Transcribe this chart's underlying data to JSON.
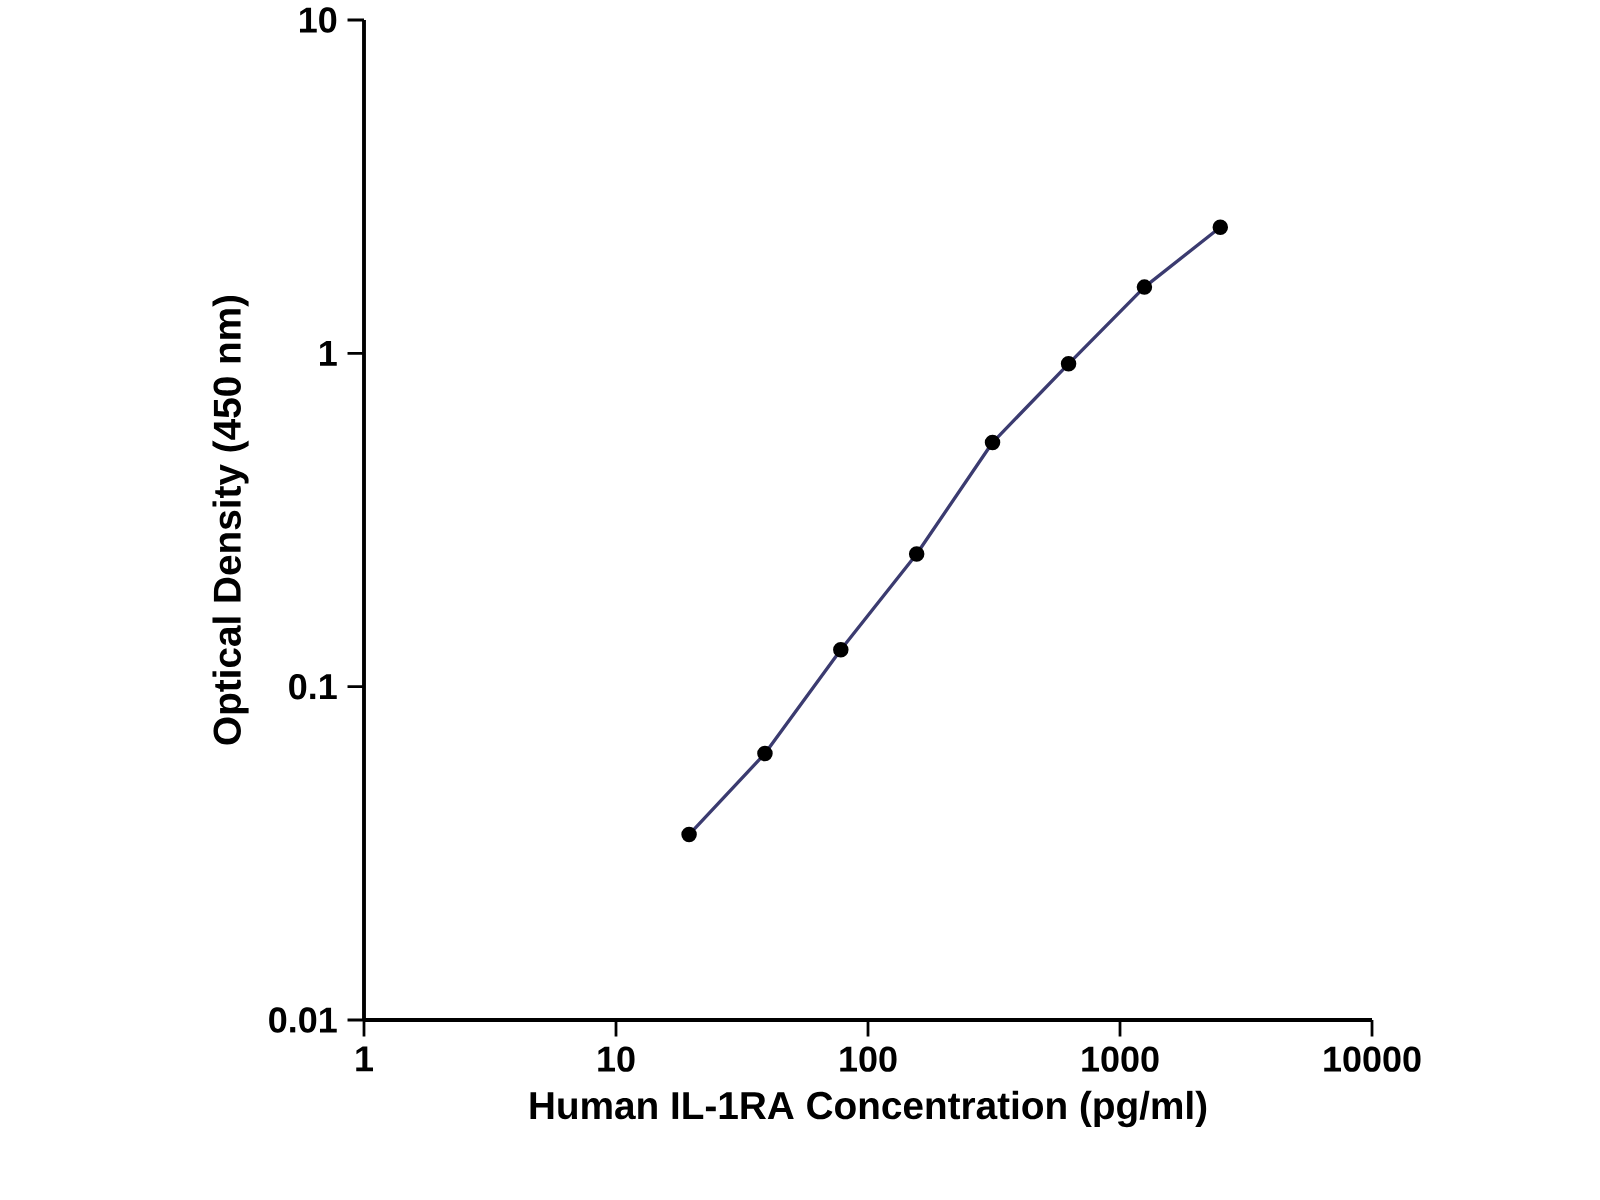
{
  "chart_data": {
    "type": "line",
    "xlabel": "Human IL-1RA Concentration (pg/ml)",
    "ylabel": "Optical Density (450 nm)",
    "log": "xy",
    "x": [
      19.5,
      39,
      78,
      156,
      312,
      625,
      1250,
      2500
    ],
    "series": [
      {
        "color": "#3b3b70",
        "values": [
          0.036,
          0.063,
          0.129,
          0.25,
          0.54,
          0.93,
          1.58,
          2.39
        ]
      }
    ],
    "marker": "circle",
    "line_style": "solid",
    "grid": false,
    "xlim": [
      1,
      10000
    ],
    "ylim": [
      0.01,
      10
    ],
    "xticks": [
      1,
      10,
      100,
      1000,
      10000
    ],
    "yticks": [
      0.01,
      0.1,
      1,
      10
    ]
  }
}
